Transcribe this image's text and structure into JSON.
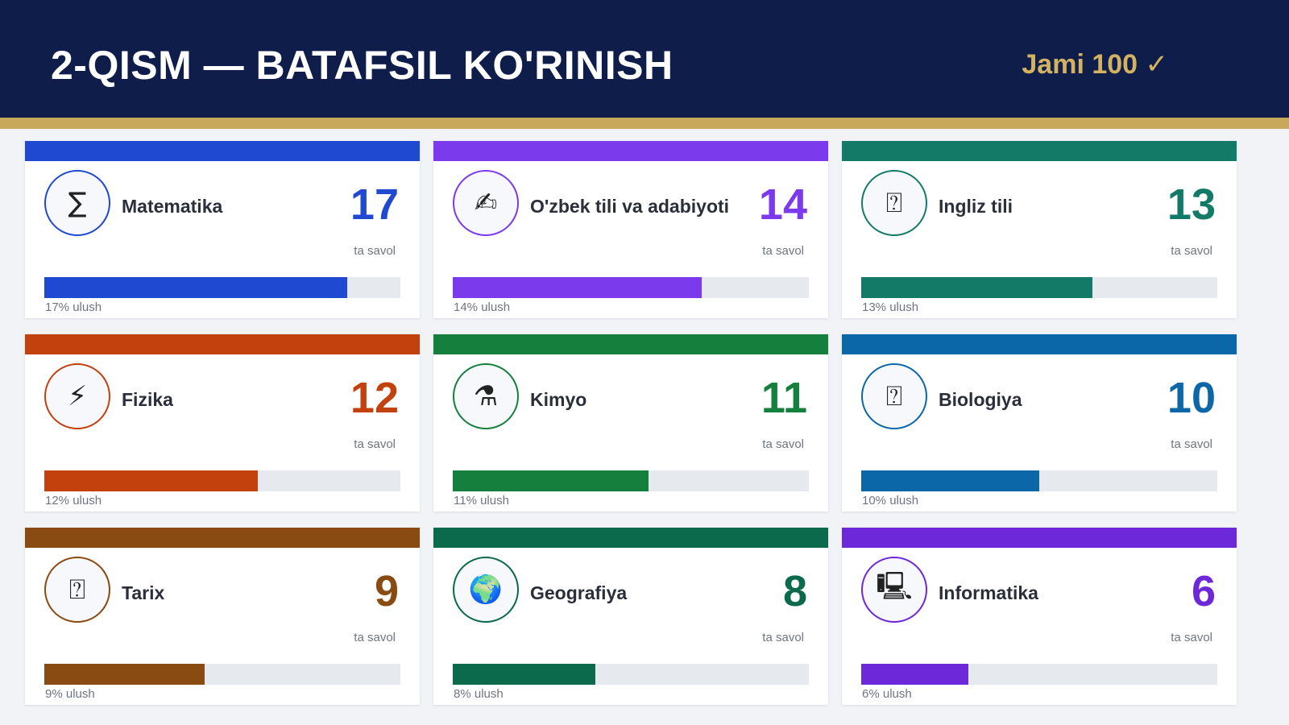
{
  "header": {
    "title": "2-QISM — BATAFSIL KO'RINISH",
    "total": "Jami 100 ✓"
  },
  "colors": {
    "header_bg": "#0f1d4a",
    "gold": "#c8a95b"
  },
  "cards": [
    {
      "name": "Matematika",
      "count": "17",
      "unit": "ta savol",
      "share": "17% ulush",
      "fraction": 0.85,
      "color": "#1f49d0",
      "icon": "sigma-icon",
      "glyph": "∑"
    },
    {
      "name": "O'zbek tili va adabiyoti",
      "count": "14",
      "unit": "ta savol",
      "share": "14% ulush",
      "fraction": 0.7,
      "color": "#7c3aed",
      "icon": "writing-hand-icon",
      "glyph": "✍"
    },
    {
      "name": "Ingliz tili",
      "count": "13",
      "unit": "ta savol",
      "share": "13% ulush",
      "fraction": 0.65,
      "color": "#137a67",
      "icon": "unknown-glyph-icon",
      "glyph": "⍰"
    },
    {
      "name": "Fizika",
      "count": "12",
      "unit": "ta savol",
      "share": "12% ulush",
      "fraction": 0.6,
      "color": "#c2410c",
      "icon": "lightning-icon",
      "glyph": "⚡"
    },
    {
      "name": "Kimyo",
      "count": "11",
      "unit": "ta savol",
      "share": "11% ulush",
      "fraction": 0.55,
      "color": "#15803d",
      "icon": "flask-icon",
      "glyph": "⚗"
    },
    {
      "name": "Biologiya",
      "count": "10",
      "unit": "ta savol",
      "share": "10% ulush",
      "fraction": 0.5,
      "color": "#0b67a8",
      "icon": "unknown-glyph-icon",
      "glyph": "⍰"
    },
    {
      "name": "Tarix",
      "count": "9",
      "unit": "ta savol",
      "share": "9% ulush",
      "fraction": 0.45,
      "color": "#8a4b12",
      "icon": "unknown-glyph-icon",
      "glyph": "⍰"
    },
    {
      "name": "Geografiya",
      "count": "8",
      "unit": "ta savol",
      "share": "8% ulush",
      "fraction": 0.4,
      "color": "#0a6a4b",
      "icon": "globe-icon",
      "glyph": "🌍"
    },
    {
      "name": "Informatika",
      "count": "6",
      "unit": "ta savol",
      "share": "6% ulush",
      "fraction": 0.3,
      "color": "#6d28d9",
      "icon": "computer-icon",
      "glyph": "🖳"
    }
  ]
}
